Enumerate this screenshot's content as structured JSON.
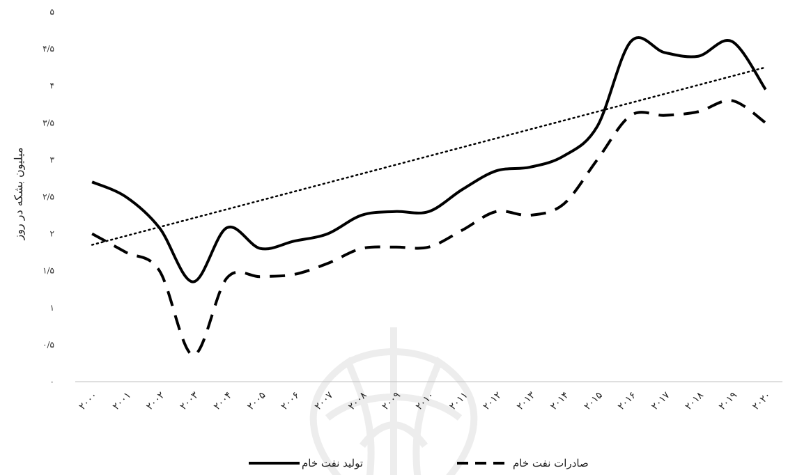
{
  "chart_data": {
    "type": "line",
    "ylabel": "میلیون بشکه در روز",
    "xlabel": "",
    "ylim": [
      0,
      5
    ],
    "y_tick_labels": [
      "۰",
      "۰/۵",
      "۱",
      "۱/۵",
      "۲",
      "۲/۵",
      "۳",
      "۳/۵",
      "۴",
      "۴/۵",
      "۵"
    ],
    "categories": [
      "۲۰۰۰",
      "۲۰۰۱",
      "۲۰۰۲",
      "۲۰۰۳",
      "۲۰۰۴",
      "۲۰۰۵",
      "۲۰۰۶",
      "۲۰۰۷",
      "۲۰۰۸",
      "۲۰۰۹",
      "۲۰۱۰",
      "۲۰۱۱",
      "۲۰۱۲",
      "۲۰۱۳",
      "۲۰۱۴",
      "۲۰۱۵",
      "۲۰۱۶",
      "۲۰۱۷",
      "۲۰۱۸",
      "۲۰۱۹",
      "۲۰۲۰"
    ],
    "series": [
      {
        "name": "تولید نفت خام",
        "style": "solid",
        "color": "#000000",
        "values": [
          2.7,
          2.5,
          2.08,
          1.35,
          2.08,
          1.8,
          1.9,
          2.0,
          2.25,
          2.3,
          2.3,
          2.6,
          2.85,
          2.9,
          3.05,
          3.45,
          4.6,
          4.45,
          4.4,
          4.6,
          3.95
        ]
      },
      {
        "name": "صادرات نفت خام",
        "style": "dashed",
        "color": "#000000",
        "values": [
          2.0,
          1.75,
          1.5,
          0.36,
          1.4,
          1.42,
          1.45,
          1.6,
          1.8,
          1.82,
          1.82,
          2.05,
          2.3,
          2.25,
          2.4,
          3.0,
          3.6,
          3.6,
          3.65,
          3.8,
          3.5
        ]
      }
    ],
    "trendline": {
      "style": "dotted",
      "color": "#000000",
      "start": 1.85,
      "end": 4.25
    },
    "legend_position": "bottom",
    "grid": false
  }
}
